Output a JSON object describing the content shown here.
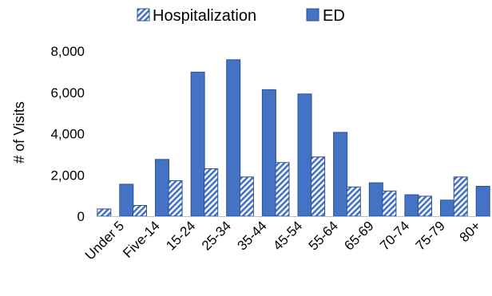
{
  "chart_data": {
    "type": "bar",
    "title": "",
    "xlabel": "",
    "ylabel": "# of Visits",
    "ylim": [
      0,
      8000
    ],
    "yticks": [
      0,
      2000,
      4000,
      6000,
      8000
    ],
    "ytick_labels": [
      "0",
      "2,000",
      "4,000",
      "6,000",
      "8,000"
    ],
    "grid": false,
    "legend_position": "top",
    "categories": [
      "Under 5",
      "Five-14",
      "15-24",
      "25-34",
      "35-44",
      "45-54",
      "55-64",
      "65-69",
      "70-74",
      "75-79",
      "80+"
    ],
    "series": [
      {
        "name": "Hospitalization",
        "style": "hatched",
        "color": "#4472C4",
        "values": [
          350,
          520,
          1720,
          2300,
          1900,
          2600,
          2870,
          1420,
          1220,
          970,
          1900
        ]
      },
      {
        "name": "ED",
        "style": "solid",
        "color": "#4472C4",
        "values": [
          1550,
          2750,
          6980,
          7580,
          6130,
          5920,
          4060,
          1620,
          1040,
          780,
          1450
        ]
      }
    ]
  }
}
